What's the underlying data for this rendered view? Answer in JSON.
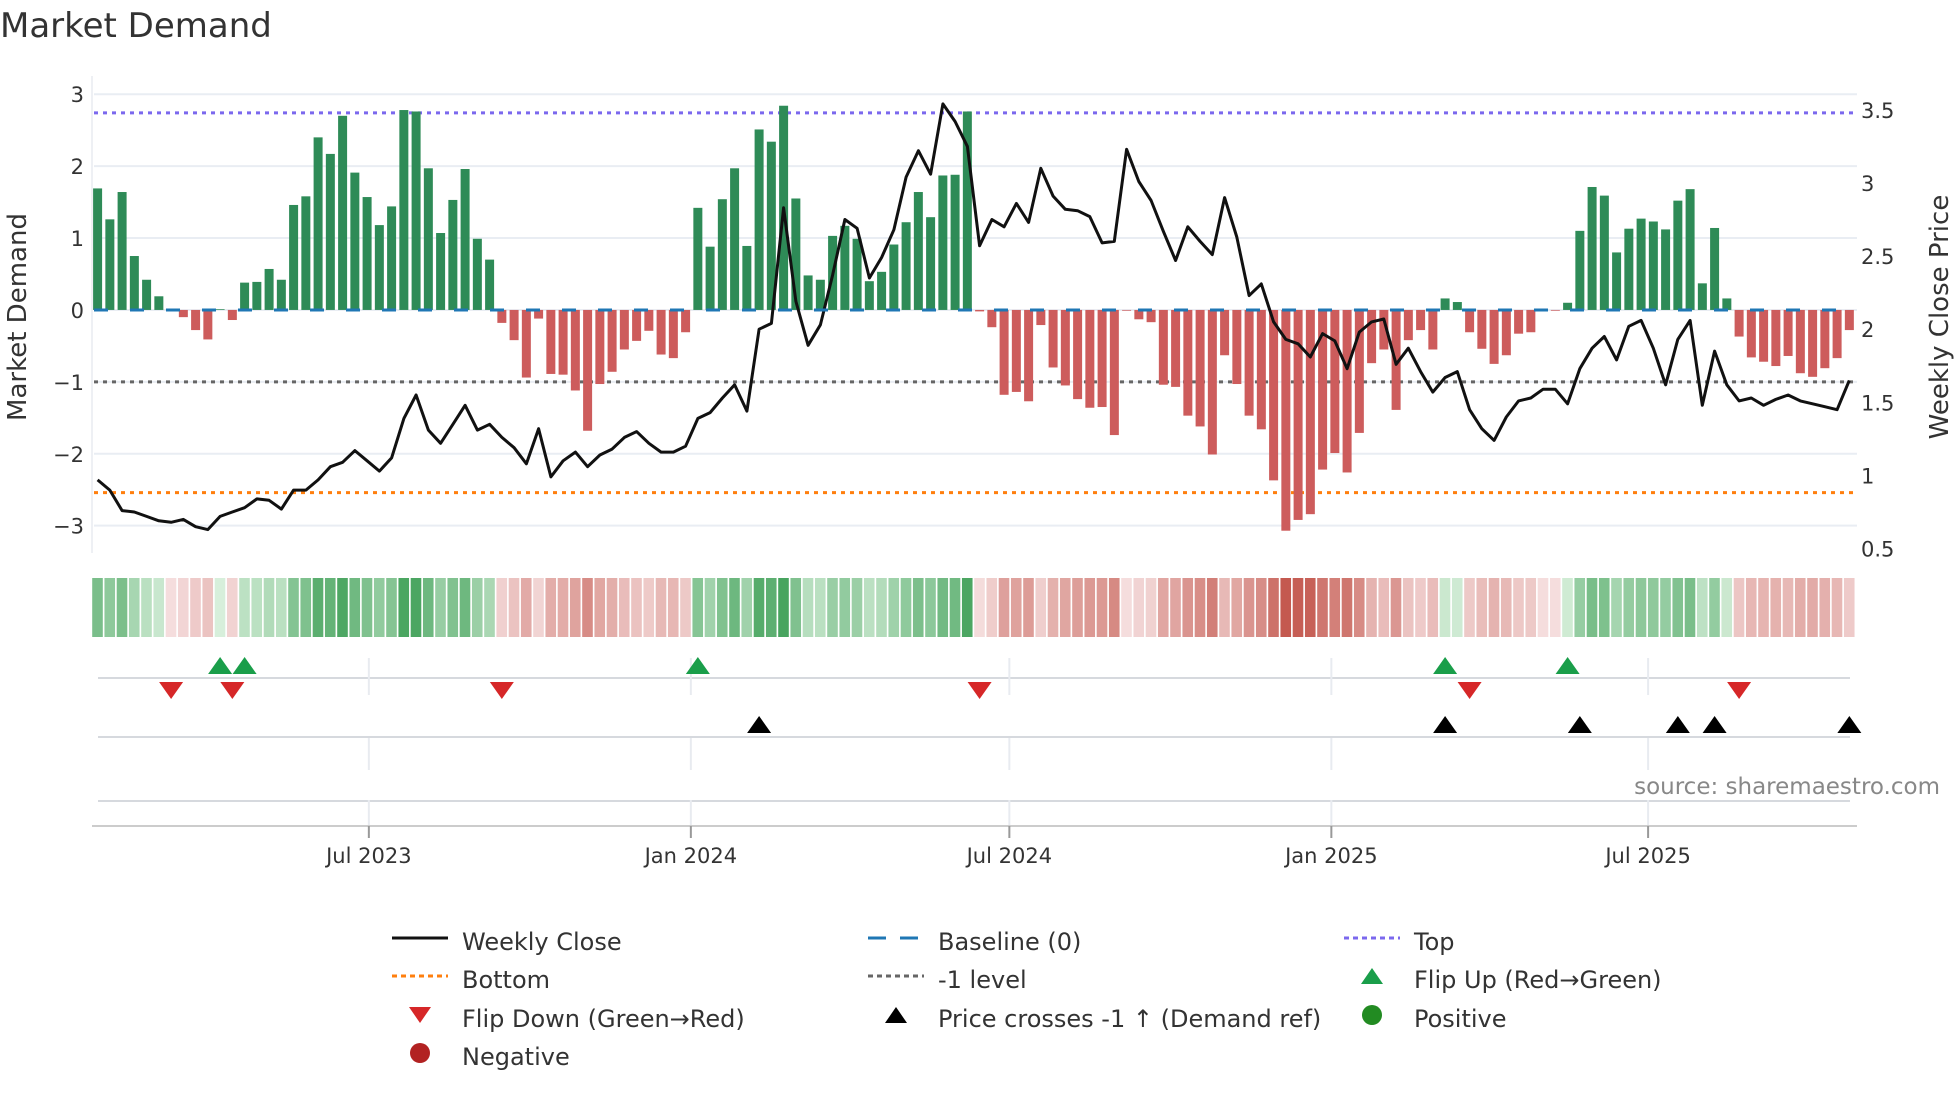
{
  "title": "Market Demand",
  "source": "source: sharemaestro.com",
  "colors": {
    "positive_bar": "#2e8b57",
    "negative_bar": "#cd5c5c",
    "line": "#111111",
    "baseline": "#1f77b4",
    "top": "#7b68ee",
    "bottom": "#ff7f0e",
    "minus1": "#666666",
    "flip_up": "#1a9e4a",
    "flip_down": "#d62728",
    "cross": "#000000",
    "positive_dot": "#228b22",
    "negative_dot": "#b22222"
  },
  "legend": [
    {
      "label": "Weekly Close",
      "icon": "solid-line"
    },
    {
      "label": "Baseline (0)",
      "icon": "dashed-line"
    },
    {
      "label": "Top",
      "icon": "dotted-line"
    },
    {
      "label": "Bottom",
      "icon": "dotted-line"
    },
    {
      "label": "-1 level",
      "icon": "dotted-line"
    },
    {
      "label": "Flip Up (Red→Green)",
      "icon": "triangle-up"
    },
    {
      "label": "Flip Down (Green→Red)",
      "icon": "triangle-down"
    },
    {
      "label": "Price crosses -1 ↑ (Demand ref)",
      "icon": "triangle-up"
    },
    {
      "label": "Positive",
      "icon": "circle"
    },
    {
      "label": "Negative",
      "icon": "circle"
    }
  ],
  "chart_data": {
    "type": "bar",
    "title": "Market Demand",
    "ylabel": "Market Demand",
    "y2label": "Weekly Close Price",
    "x_start": "2023-01-27",
    "x_step_days": 7,
    "xticks": [
      {
        "label": "Jul 2023",
        "date": "2023-07-01"
      },
      {
        "label": "Jan 2024",
        "date": "2024-01-01"
      },
      {
        "label": "Jul 2024",
        "date": "2024-07-01"
      },
      {
        "label": "Jan 2025",
        "date": "2025-01-01"
      },
      {
        "label": "Jul 2025",
        "date": "2025-07-01"
      }
    ],
    "ylim": [
      -3.38,
      3.17
    ],
    "yticks": [
      "3",
      "2",
      "1",
      "0",
      "−1",
      "−2",
      "−3"
    ],
    "ytick_values": [
      3,
      2,
      1,
      0,
      -1,
      -2,
      -3
    ],
    "y2lim": [
      0.47,
      3.69
    ],
    "y2ticks": [
      "3.5",
      "3",
      "2.5",
      "2",
      "1.5",
      "1",
      "0.5"
    ],
    "y2tick_values": [
      3.5,
      3,
      2.5,
      2,
      1.5,
      1,
      0.5
    ],
    "levels": {
      "top": 2.74,
      "bottom": -2.54,
      "minus1": -1,
      "baseline": 0
    },
    "demand": [
      1.69,
      1.26,
      1.64,
      0.75,
      0.42,
      0.19,
      -0.01,
      -0.1,
      -0.28,
      -0.41,
      0.01,
      -0.14,
      0.38,
      0.39,
      0.57,
      0.42,
      1.46,
      1.58,
      2.4,
      2.17,
      2.7,
      1.91,
      1.57,
      1.18,
      1.44,
      2.78,
      2.76,
      1.97,
      1.07,
      1.53,
      1.96,
      0.99,
      0.7,
      -0.18,
      -0.42,
      -0.94,
      -0.12,
      -0.89,
      -0.9,
      -1.12,
      -1.68,
      -1.03,
      -0.86,
      -0.55,
      -0.43,
      -0.29,
      -0.62,
      -0.67,
      -0.31,
      1.42,
      0.88,
      1.54,
      1.97,
      0.89,
      2.51,
      2.34,
      2.84,
      1.55,
      0.48,
      0.42,
      1.03,
      1.17,
      0.99,
      0.4,
      0.53,
      0.91,
      1.22,
      1.64,
      1.29,
      1.87,
      1.88,
      2.76,
      -0.02,
      -0.24,
      -1.18,
      -1.14,
      -1.27,
      -0.21,
      -0.8,
      -1.05,
      -1.24,
      -1.36,
      -1.35,
      -1.74,
      -0.01,
      -0.13,
      -0.17,
      -1.04,
      -1.07,
      -1.47,
      -1.62,
      -2.01,
      -0.63,
      -1.03,
      -1.47,
      -1.66,
      -2.37,
      -3.07,
      -2.92,
      -2.84,
      -2.22,
      -1.99,
      -2.26,
      -1.71,
      -0.74,
      -0.55,
      -1.39,
      -0.42,
      -0.28,
      -0.55,
      0.16,
      0.11,
      -0.31,
      -0.54,
      -0.75,
      -0.63,
      -0.33,
      -0.31,
      -0.01,
      -0.01,
      0.1,
      1.1,
      1.71,
      1.59,
      0.8,
      1.13,
      1.27,
      1.23,
      1.12,
      1.52,
      1.68,
      0.37,
      1.14,
      0.16,
      -0.37,
      -0.66,
      -0.72,
      -0.78,
      -0.64,
      -0.88,
      -0.93,
      -0.81,
      -0.67,
      -0.28
    ],
    "weekly_close": [
      0.97,
      0.9,
      0.76,
      0.75,
      0.72,
      0.69,
      0.68,
      0.7,
      0.65,
      0.63,
      0.72,
      0.75,
      0.78,
      0.84,
      0.83,
      0.77,
      0.9,
      0.9,
      0.97,
      1.06,
      1.09,
      1.17,
      1.1,
      1.03,
      1.12,
      1.39,
      1.55,
      1.31,
      1.22,
      1.35,
      1.48,
      1.31,
      1.35,
      1.26,
      1.19,
      1.08,
      1.32,
      0.99,
      1.1,
      1.16,
      1.06,
      1.14,
      1.18,
      1.26,
      1.3,
      1.22,
      1.16,
      1.16,
      1.2,
      1.39,
      1.43,
      1.53,
      1.62,
      1.44,
      2.0,
      2.04,
      2.83,
      2.19,
      1.89,
      2.03,
      2.37,
      2.75,
      2.69,
      2.35,
      2.49,
      2.68,
      3.04,
      3.22,
      3.06,
      3.54,
      3.42,
      3.25,
      2.57,
      2.75,
      2.7,
      2.86,
      2.73,
      3.1,
      2.91,
      2.82,
      2.81,
      2.77,
      2.59,
      2.6,
      3.23,
      3.01,
      2.88,
      2.67,
      2.47,
      2.7,
      2.6,
      2.51,
      2.9,
      2.63,
      2.23,
      2.31,
      2.05,
      1.93,
      1.9,
      1.81,
      1.97,
      1.92,
      1.73,
      1.98,
      2.05,
      2.07,
      1.76,
      1.87,
      1.71,
      1.57,
      1.67,
      1.71,
      1.45,
      1.32,
      1.24,
      1.4,
      1.51,
      1.53,
      1.59,
      1.59,
      1.49,
      1.73,
      1.87,
      1.95,
      1.79,
      2.02,
      2.06,
      1.87,
      1.62,
      1.93,
      2.06,
      1.48,
      1.85,
      1.62,
      1.51,
      1.53,
      1.48,
      1.52,
      1.55,
      1.51,
      1.49,
      1.47,
      1.45,
      1.65
    ],
    "flip_up_weeks": [
      11,
      13,
      50,
      111,
      121
    ],
    "flip_down_weeks": [
      7,
      12,
      34,
      73,
      113,
      135
    ],
    "price_cross_weeks": [
      55,
      111,
      122,
      130,
      133,
      144
    ]
  }
}
